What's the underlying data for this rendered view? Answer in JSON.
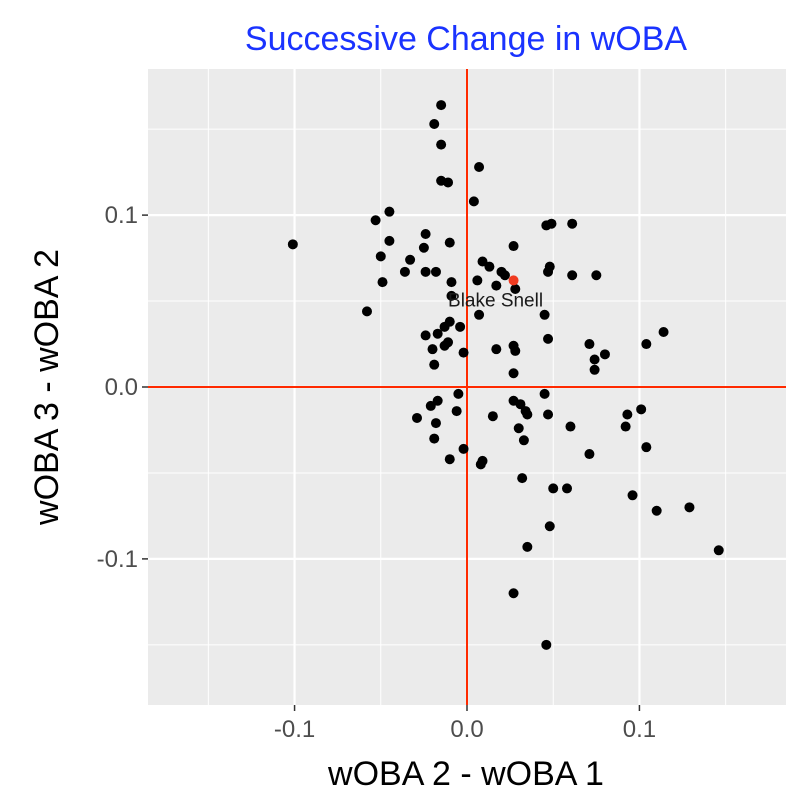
{
  "chart_data": {
    "type": "scatter",
    "title": "Successive Change in wOBA",
    "xlabel": "wOBA 2 - wOBA 1",
    "ylabel": "wOBA 3 - wOBA 2",
    "xlim": [
      -0.185,
      0.185
    ],
    "ylim": [
      -0.185,
      0.185
    ],
    "x_ticks": [
      -0.1,
      0.0,
      0.1
    ],
    "y_ticks": [
      -0.1,
      0.0,
      0.1
    ],
    "x_tick_labels": [
      "-0.1",
      "0.0",
      "0.1"
    ],
    "y_tick_labels": [
      "-0.1",
      "0.0",
      "0.1"
    ],
    "grid": true,
    "reference_lines": {
      "x": 0,
      "y": 0,
      "color": "#ff2a00"
    },
    "colors": {
      "panel": "#ebebeb",
      "grid": "#ffffff",
      "point": "#000000",
      "highlight": "#f03b20",
      "title": "#1a33ff"
    },
    "highlight": {
      "label": "Blake Snell",
      "x": 0.027,
      "y": 0.062
    },
    "points": [
      {
        "x": -0.015,
        "y": 0.164
      },
      {
        "x": -0.019,
        "y": 0.153
      },
      {
        "x": -0.015,
        "y": 0.141
      },
      {
        "x": 0.007,
        "y": 0.128
      },
      {
        "x": -0.015,
        "y": 0.12
      },
      {
        "x": -0.011,
        "y": 0.119
      },
      {
        "x": 0.004,
        "y": 0.108
      },
      {
        "x": -0.045,
        "y": 0.102
      },
      {
        "x": -0.053,
        "y": 0.097
      },
      {
        "x": 0.046,
        "y": 0.094
      },
      {
        "x": 0.049,
        "y": 0.095
      },
      {
        "x": 0.061,
        "y": 0.095
      },
      {
        "x": -0.024,
        "y": 0.089
      },
      {
        "x": -0.045,
        "y": 0.085
      },
      {
        "x": -0.101,
        "y": 0.083
      },
      {
        "x": -0.01,
        "y": 0.084
      },
      {
        "x": 0.027,
        "y": 0.082
      },
      {
        "x": -0.025,
        "y": 0.081
      },
      {
        "x": -0.05,
        "y": 0.076
      },
      {
        "x": -0.033,
        "y": 0.074
      },
      {
        "x": 0.009,
        "y": 0.073
      },
      {
        "x": 0.013,
        "y": 0.07
      },
      {
        "x": -0.024,
        "y": 0.067
      },
      {
        "x": -0.036,
        "y": 0.067
      },
      {
        "x": -0.018,
        "y": 0.067
      },
      {
        "x": 0.02,
        "y": 0.067
      },
      {
        "x": 0.022,
        "y": 0.065
      },
      {
        "x": 0.048,
        "y": 0.07
      },
      {
        "x": 0.047,
        "y": 0.067
      },
      {
        "x": 0.061,
        "y": 0.065
      },
      {
        "x": 0.075,
        "y": 0.065
      },
      {
        "x": -0.049,
        "y": 0.061
      },
      {
        "x": -0.009,
        "y": 0.061
      },
      {
        "x": 0.006,
        "y": 0.062
      },
      {
        "x": 0.017,
        "y": 0.059
      },
      {
        "x": 0.028,
        "y": 0.057
      },
      {
        "x": -0.009,
        "y": 0.053
      },
      {
        "x": -0.058,
        "y": 0.044
      },
      {
        "x": 0.045,
        "y": 0.042
      },
      {
        "x": 0.007,
        "y": 0.042
      },
      {
        "x": -0.004,
        "y": 0.035
      },
      {
        "x": -0.013,
        "y": 0.035
      },
      {
        "x": -0.01,
        "y": 0.038
      },
      {
        "x": -0.024,
        "y": 0.03
      },
      {
        "x": -0.017,
        "y": 0.031
      },
      {
        "x": 0.047,
        "y": 0.028
      },
      {
        "x": 0.114,
        "y": 0.032
      },
      {
        "x": -0.011,
        "y": 0.026
      },
      {
        "x": -0.02,
        "y": 0.022
      },
      {
        "x": -0.013,
        "y": 0.024
      },
      {
        "x": 0.071,
        "y": 0.025
      },
      {
        "x": 0.104,
        "y": 0.025
      },
      {
        "x": -0.002,
        "y": 0.02
      },
      {
        "x": 0.017,
        "y": 0.022
      },
      {
        "x": 0.027,
        "y": 0.024
      },
      {
        "x": 0.028,
        "y": 0.021
      },
      {
        "x": 0.08,
        "y": 0.019
      },
      {
        "x": 0.074,
        "y": 0.016
      },
      {
        "x": -0.019,
        "y": 0.013
      },
      {
        "x": 0.074,
        "y": 0.01
      },
      {
        "x": 0.027,
        "y": 0.008
      },
      {
        "x": -0.005,
        "y": -0.004
      },
      {
        "x": 0.045,
        "y": -0.004
      },
      {
        "x": -0.029,
        "y": -0.018
      },
      {
        "x": -0.021,
        "y": -0.011
      },
      {
        "x": -0.017,
        "y": -0.008
      },
      {
        "x": 0.027,
        "y": -0.008
      },
      {
        "x": 0.031,
        "y": -0.01
      },
      {
        "x": 0.034,
        "y": -0.014
      },
      {
        "x": -0.006,
        "y": -0.014
      },
      {
        "x": 0.015,
        "y": -0.017
      },
      {
        "x": 0.035,
        "y": -0.016
      },
      {
        "x": 0.047,
        "y": -0.016
      },
      {
        "x": 0.093,
        "y": -0.016
      },
      {
        "x": 0.101,
        "y": -0.013
      },
      {
        "x": -0.018,
        "y": -0.021
      },
      {
        "x": 0.03,
        "y": -0.024
      },
      {
        "x": 0.06,
        "y": -0.023
      },
      {
        "x": 0.092,
        "y": -0.023
      },
      {
        "x": -0.019,
        "y": -0.03
      },
      {
        "x": 0.033,
        "y": -0.031
      },
      {
        "x": -0.002,
        "y": -0.036
      },
      {
        "x": 0.071,
        "y": -0.039
      },
      {
        "x": 0.104,
        "y": -0.035
      },
      {
        "x": -0.01,
        "y": -0.042
      },
      {
        "x": 0.009,
        "y": -0.043
      },
      {
        "x": 0.008,
        "y": -0.045
      },
      {
        "x": 0.032,
        "y": -0.053
      },
      {
        "x": 0.05,
        "y": -0.059
      },
      {
        "x": 0.058,
        "y": -0.059
      },
      {
        "x": 0.096,
        "y": -0.063
      },
      {
        "x": 0.11,
        "y": -0.072
      },
      {
        "x": 0.129,
        "y": -0.07
      },
      {
        "x": 0.048,
        "y": -0.081
      },
      {
        "x": 0.035,
        "y": -0.093
      },
      {
        "x": 0.146,
        "y": -0.095
      },
      {
        "x": 0.027,
        "y": -0.12
      },
      {
        "x": 0.046,
        "y": -0.15
      }
    ]
  }
}
